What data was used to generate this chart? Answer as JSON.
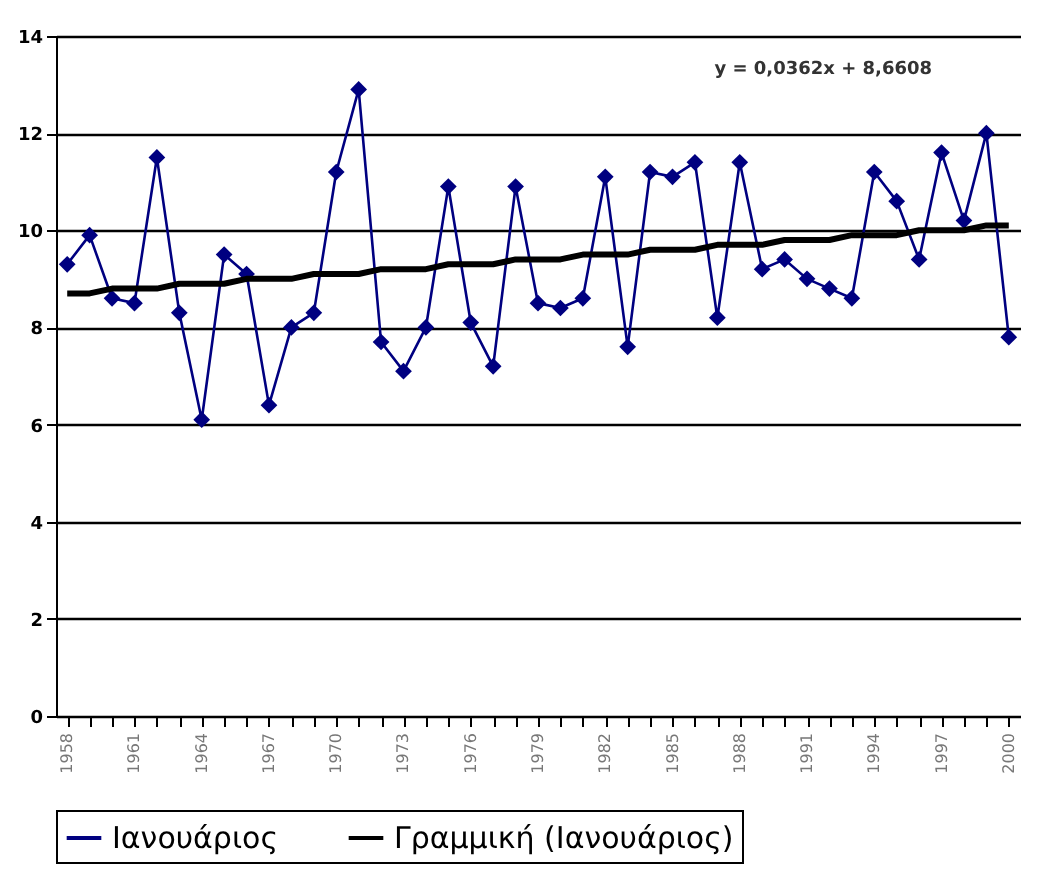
{
  "chart_data": {
    "type": "line",
    "categories": [
      "1958",
      null,
      null,
      "1961",
      null,
      null,
      "1964",
      null,
      null,
      "1967",
      null,
      null,
      "1970",
      null,
      null,
      "1973",
      null,
      null,
      "1976",
      null,
      null,
      "1979",
      null,
      null,
      "1982",
      null,
      null,
      "1985",
      null,
      null,
      "1988",
      null,
      null,
      "1991",
      null,
      null,
      "1994",
      null,
      null,
      "1997",
      null,
      null,
      "2000"
    ],
    "series": [
      {
        "name": "Ιανουάριος",
        "color": "#000080",
        "marker": "diamond",
        "values": [
          9.3,
          9.9,
          8.6,
          8.5,
          11.5,
          8.3,
          6.1,
          9.5,
          9.1,
          6.4,
          8.0,
          8.3,
          11.2,
          12.9,
          7.7,
          7.1,
          8.0,
          10.9,
          8.1,
          7.2,
          10.9,
          8.5,
          8.4,
          8.6,
          11.1,
          7.6,
          11.2,
          11.1,
          11.4,
          8.2,
          11.4,
          9.2,
          9.4,
          9.0,
          8.8,
          8.6,
          11.2,
          10.6,
          9.4,
          11.6,
          10.2,
          12.0,
          7.8
        ]
      },
      {
        "name": "Γραμμική (Ιανουάριος)",
        "color": "#000000",
        "marker": "none",
        "values": [
          8.7,
          8.7,
          8.8,
          8.8,
          8.8,
          8.9,
          8.9,
          8.9,
          9.0,
          9.0,
          9.0,
          9.1,
          9.1,
          9.1,
          9.2,
          9.2,
          9.2,
          9.3,
          9.3,
          9.3,
          9.4,
          9.4,
          9.4,
          9.5,
          9.5,
          9.5,
          9.6,
          9.6,
          9.6,
          9.7,
          9.7,
          9.7,
          9.8,
          9.8,
          9.8,
          9.9,
          9.9,
          9.9,
          10.0,
          10.0,
          10.0,
          10.1,
          10.1
        ]
      }
    ],
    "ylim": [
      0,
      14
    ],
    "yticks": [
      0,
      2,
      4,
      6,
      8,
      10,
      12,
      14
    ],
    "grid": "y",
    "legend": "bottom",
    "annotations": [
      "y = 0,0362x + 8,6608"
    ]
  }
}
